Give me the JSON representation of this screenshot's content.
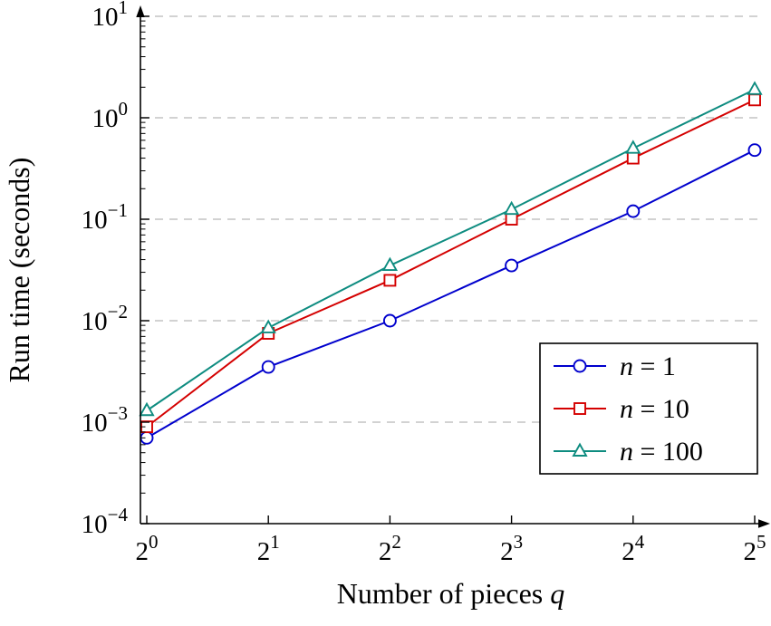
{
  "figure": {
    "ylabel": "Run time (seconds)",
    "xlabel_text": "Number of pieces ",
    "xlabel_var": "q"
  },
  "chart_data": {
    "type": "line",
    "x_scale": "log2",
    "y_scale": "log10",
    "x_base": 2,
    "x_exponents": [
      0,
      1,
      2,
      3,
      4,
      5
    ],
    "y_base": 10,
    "y_exponents": [
      -4,
      -3,
      -2,
      -1,
      0,
      1
    ],
    "xlabel": "Number of pieces q",
    "ylabel": "Run time (seconds)",
    "ylim": [
      0.0001,
      10
    ],
    "grid": "dashed-horizontal-major",
    "legend_position": "bottom-right",
    "series": [
      {
        "name": "n = 1",
        "marker": "circle",
        "color": "#0000cd",
        "x": [
          1,
          2,
          4,
          8,
          16,
          32
        ],
        "values": [
          0.0007,
          0.0035,
          0.01,
          0.035,
          0.12,
          0.48
        ]
      },
      {
        "name": "n = 10",
        "marker": "square",
        "color": "#d40000",
        "x": [
          1,
          2,
          4,
          8,
          16,
          32
        ],
        "values": [
          0.0009,
          0.0075,
          0.025,
          0.1,
          0.4,
          1.5
        ]
      },
      {
        "name": "n = 100",
        "marker": "triangle",
        "color": "#0e8c80",
        "x": [
          1,
          2,
          4,
          8,
          16,
          32
        ],
        "values": [
          0.0013,
          0.0085,
          0.035,
          0.125,
          0.5,
          1.9
        ]
      }
    ],
    "style": {
      "grid_color": "#c3c3c3",
      "axis_color": "#000000",
      "legend_border": "#000000",
      "legend_bg": "#ffffff"
    }
  }
}
